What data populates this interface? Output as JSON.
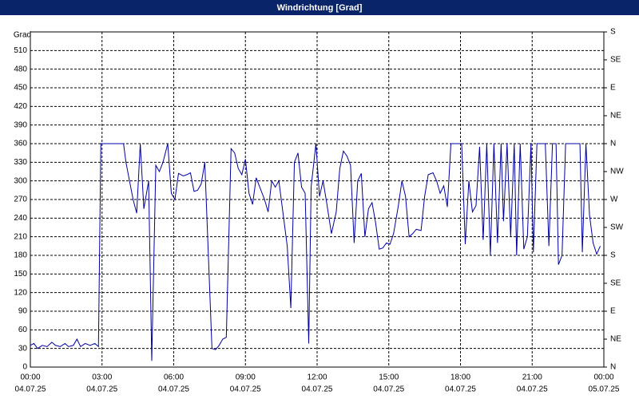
{
  "chart_data": {
    "type": "line",
    "title": "Windrichtung [Grad]",
    "ylabel": "Grad",
    "xlim": [
      0,
      24
    ],
    "xticks": [
      {
        "value": 0,
        "label": "00:00"
      },
      {
        "value": 3,
        "label": "03:00"
      },
      {
        "value": 6,
        "label": "06:00"
      },
      {
        "value": 9,
        "label": "09:00"
      },
      {
        "value": 12,
        "label": "12:00"
      },
      {
        "value": 15,
        "label": "15:00"
      },
      {
        "value": 18,
        "label": "18:00"
      },
      {
        "value": 21,
        "label": "21:00"
      },
      {
        "value": 24,
        "label": "00:00"
      }
    ],
    "xtick_dates": [
      "04.07.25",
      "04.07.25",
      "04.07.25",
      "04.07.25",
      "04.07.25",
      "04.07.25",
      "04.07.25",
      "04.07.25",
      "05.07.25"
    ],
    "ylim": [
      0,
      540
    ],
    "yticks": [
      0,
      30,
      60,
      90,
      120,
      150,
      180,
      210,
      240,
      270,
      300,
      330,
      360,
      390,
      420,
      450,
      480,
      510
    ],
    "y2lim": [
      0,
      540
    ],
    "y2ticks": [
      {
        "value": 0,
        "label": "N"
      },
      {
        "value": 45,
        "label": "NE"
      },
      {
        "value": 90,
        "label": "E"
      },
      {
        "value": 135,
        "label": "SE"
      },
      {
        "value": 180,
        "label": "S"
      },
      {
        "value": 225,
        "label": "SW"
      },
      {
        "value": 270,
        "label": "W"
      },
      {
        "value": 315,
        "label": "NW"
      },
      {
        "value": 360,
        "label": "N"
      },
      {
        "value": 405,
        "label": "NE"
      },
      {
        "value": 450,
        "label": "E"
      },
      {
        "value": 495,
        "label": "SE"
      },
      {
        "value": 540,
        "label": "S"
      }
    ],
    "grid": true,
    "color": "#0000a0",
    "x": [
      0.0,
      0.15,
      0.3,
      0.5,
      0.7,
      0.9,
      1.05,
      1.25,
      1.45,
      1.6,
      1.8,
      1.95,
      2.1,
      2.3,
      2.5,
      2.7,
      2.85,
      2.95,
      3.3,
      3.6,
      3.9,
      4.0,
      4.15,
      4.3,
      4.45,
      4.6,
      4.75,
      4.95,
      5.08,
      5.25,
      5.4,
      5.55,
      5.75,
      5.9,
      6.05,
      6.2,
      6.4,
      6.55,
      6.7,
      6.85,
      7.0,
      7.15,
      7.3,
      7.6,
      7.75,
      7.9,
      8.05,
      8.2,
      8.4,
      8.55,
      8.7,
      8.85,
      9.0,
      9.15,
      9.3,
      9.45,
      9.6,
      9.8,
      9.95,
      10.1,
      10.25,
      10.4,
      10.55,
      10.75,
      10.9,
      11.05,
      11.2,
      11.35,
      11.5,
      11.65,
      11.75,
      11.95,
      12.1,
      12.25,
      12.4,
      12.6,
      12.8,
      12.95,
      13.1,
      13.25,
      13.4,
      13.55,
      13.7,
      13.85,
      14.0,
      14.15,
      14.3,
      14.45,
      14.6,
      14.75,
      14.9,
      15.05,
      15.2,
      15.4,
      15.55,
      15.7,
      15.85,
      16.0,
      16.15,
      16.35,
      16.5,
      16.65,
      16.85,
      17.0,
      17.15,
      17.3,
      17.45,
      17.6,
      18.05,
      18.2,
      18.35,
      18.5,
      18.65,
      18.8,
      18.95,
      19.1,
      19.25,
      19.4,
      19.55,
      19.7,
      19.8,
      19.95,
      20.1,
      20.25,
      20.35,
      20.5,
      20.65,
      20.8,
      20.95,
      21.05,
      21.2,
      21.55,
      21.7,
      21.85,
      22.0,
      22.1,
      22.25,
      22.4,
      23.0,
      23.1,
      23.25,
      23.4,
      23.55,
      23.7,
      23.85
    ],
    "values": [
      35,
      38,
      30,
      35,
      33,
      40,
      35,
      33,
      38,
      33,
      35,
      45,
      33,
      38,
      35,
      38,
      33,
      360,
      360,
      360,
      360,
      330,
      300,
      270,
      248,
      360,
      255,
      300,
      10,
      325,
      315,
      330,
      360,
      280,
      270,
      312,
      308,
      310,
      313,
      283,
      285,
      295,
      330,
      30,
      28,
      35,
      45,
      48,
      352,
      345,
      320,
      310,
      335,
      280,
      262,
      305,
      290,
      270,
      250,
      300,
      290,
      300,
      255,
      195,
      95,
      330,
      345,
      290,
      280,
      38,
      290,
      360,
      275,
      300,
      265,
      215,
      250,
      320,
      348,
      340,
      325,
      200,
      300,
      312,
      210,
      255,
      265,
      232,
      190,
      192,
      200,
      198,
      215,
      260,
      300,
      275,
      210,
      215,
      222,
      220,
      275,
      310,
      313,
      300,
      280,
      292,
      258,
      360,
      360,
      198,
      300,
      250,
      260,
      355,
      205,
      360,
      180,
      360,
      200,
      360,
      235,
      360,
      210,
      360,
      180,
      360,
      190,
      210,
      360,
      185,
      360,
      360,
      195,
      360,
      360,
      165,
      180,
      360,
      360,
      185,
      360,
      245,
      200,
      182,
      195
    ]
  }
}
